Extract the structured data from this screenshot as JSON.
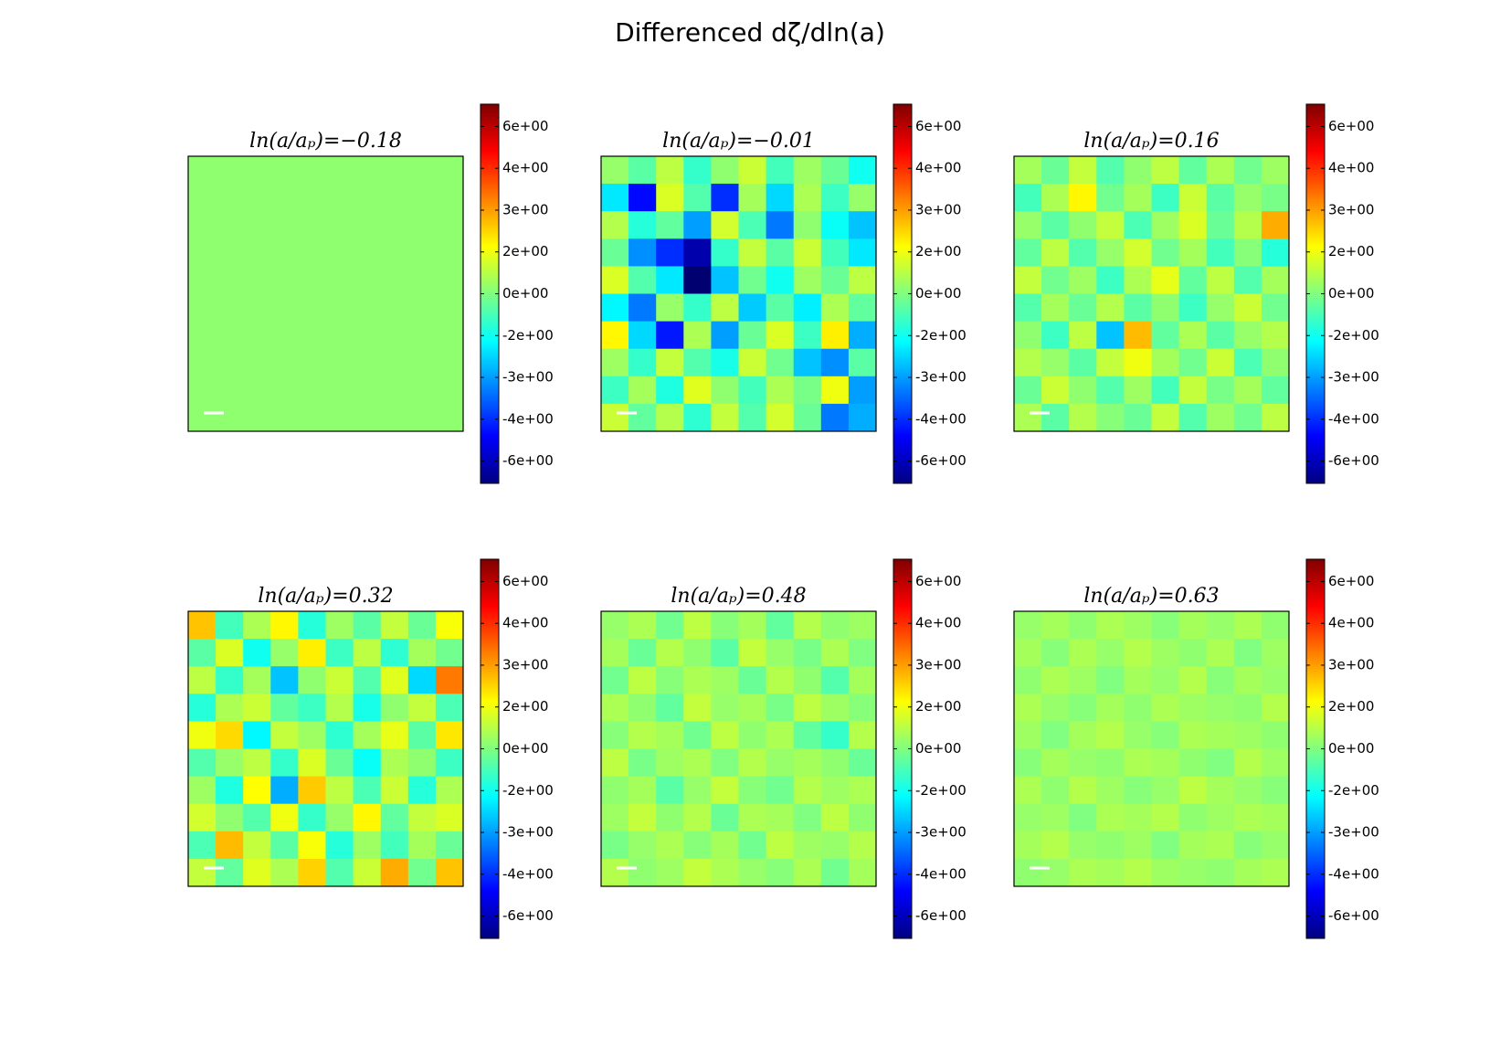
{
  "title": "Differenced dζ/dln(a)",
  "chart_data": [
    {
      "type": "heatmap",
      "title": "ln(a/aₚ)=−0.18",
      "zlim": [
        -6.8,
        6.8
      ],
      "zticks": [
        {
          "value": 6,
          "label": "6e+00"
        },
        {
          "value": 4.5,
          "label": "4e+00"
        },
        {
          "value": 3,
          "label": "3e+00"
        },
        {
          "value": 1.5,
          "label": "2e+00"
        },
        {
          "value": 0,
          "label": "0e+00"
        },
        {
          "value": -1.5,
          "label": "-2e+00"
        },
        {
          "value": -3,
          "label": "-3e+00"
        },
        {
          "value": -4.5,
          "label": "-4e+00"
        },
        {
          "value": -6,
          "label": "-6e+00"
        }
      ],
      "z": [
        [
          0.2,
          0.2,
          0.2,
          0.2,
          0.2,
          0.2,
          0.2,
          0.2,
          0.2,
          0.2
        ],
        [
          0.2,
          0.2,
          0.2,
          0.2,
          0.2,
          0.2,
          0.2,
          0.2,
          0.2,
          0.2
        ],
        [
          0.2,
          0.2,
          0.2,
          0.2,
          0.2,
          0.2,
          0.2,
          0.2,
          0.2,
          0.2
        ],
        [
          0.2,
          0.2,
          0.2,
          0.2,
          0.2,
          0.2,
          0.2,
          0.2,
          0.2,
          0.2
        ],
        [
          0.2,
          0.2,
          0.2,
          0.2,
          0.2,
          0.2,
          0.2,
          0.2,
          0.2,
          0.2
        ],
        [
          0.2,
          0.2,
          0.2,
          0.2,
          0.2,
          0.2,
          0.2,
          0.2,
          0.2,
          0.2
        ],
        [
          0.2,
          0.2,
          0.2,
          0.2,
          0.2,
          0.2,
          0.2,
          0.2,
          0.2,
          0.2
        ],
        [
          0.2,
          0.2,
          0.2,
          0.2,
          0.2,
          0.2,
          0.2,
          0.2,
          0.2,
          0.2
        ],
        [
          0.2,
          0.2,
          0.2,
          0.2,
          0.2,
          0.2,
          0.2,
          0.2,
          0.2,
          0.2
        ],
        [
          0.2,
          0.2,
          0.2,
          0.2,
          0.2,
          0.2,
          0.2,
          0.2,
          0.2,
          0.2
        ]
      ]
    },
    {
      "type": "heatmap",
      "title": "ln(a/aₚ)=−0.01",
      "zlim": [
        -6.8,
        6.8
      ],
      "zticks": [
        {
          "value": 6,
          "label": "6e+00"
        },
        {
          "value": 4.5,
          "label": "4e+00"
        },
        {
          "value": 3,
          "label": "3e+00"
        },
        {
          "value": 1.5,
          "label": "2e+00"
        },
        {
          "value": 0,
          "label": "0e+00"
        },
        {
          "value": -1.5,
          "label": "-2e+00"
        },
        {
          "value": -3,
          "label": "-3e+00"
        },
        {
          "value": -4.5,
          "label": "-4e+00"
        },
        {
          "value": -6,
          "label": "-6e+00"
        }
      ],
      "z": [
        [
          0.3,
          -0.5,
          0.8,
          -1.0,
          0.2,
          1.0,
          -0.8,
          0.4,
          -0.3,
          -1.5
        ],
        [
          -2.0,
          -5.0,
          1.2,
          -0.6,
          -4.5,
          0.5,
          -2.2,
          0.6,
          -0.9,
          0.3
        ],
        [
          0.7,
          -1.2,
          -0.4,
          -3.0,
          1.1,
          -0.7,
          -3.5,
          0.2,
          -1.6,
          -2.5
        ],
        [
          -0.3,
          -3.2,
          -4.5,
          -6.2,
          -1.0,
          0.9,
          -0.5,
          1.0,
          -0.8,
          -2.0
        ],
        [
          1.2,
          -0.6,
          -2.0,
          -7.0,
          -2.5,
          -0.2,
          -1.5,
          0.4,
          -0.3,
          0.8
        ],
        [
          -1.8,
          -3.5,
          0.3,
          -1.0,
          0.8,
          -2.4,
          -0.5,
          -1.9,
          0.6,
          -0.4
        ],
        [
          1.8,
          -2.2,
          -4.8,
          0.6,
          -3.0,
          -0.3,
          1.2,
          -0.9,
          1.9,
          -2.8
        ],
        [
          0.4,
          -1.0,
          0.9,
          -0.6,
          -1.4,
          1.0,
          -0.2,
          -2.5,
          -3.2,
          -0.5
        ],
        [
          -0.9,
          0.5,
          -1.3,
          1.3,
          0.2,
          -0.8,
          0.6,
          -0.1,
          1.5,
          -3.0
        ],
        [
          1.0,
          -0.4,
          0.7,
          -1.1,
          0.9,
          -0.6,
          1.1,
          -0.3,
          -3.5,
          -2.8
        ]
      ]
    },
    {
      "type": "heatmap",
      "title": "ln(a/aₚ)=0.16",
      "zlim": [
        -6.8,
        6.8
      ],
      "zticks": [
        {
          "value": 6,
          "label": "6e+00"
        },
        {
          "value": 4.5,
          "label": "4e+00"
        },
        {
          "value": 3,
          "label": "3e+00"
        },
        {
          "value": 1.5,
          "label": "2e+00"
        },
        {
          "value": 0,
          "label": "0e+00"
        },
        {
          "value": -1.5,
          "label": "-2e+00"
        },
        {
          "value": -3,
          "label": "-3e+00"
        },
        {
          "value": -4.5,
          "label": "-4e+00"
        },
        {
          "value": -6,
          "label": "-6e+00"
        }
      ],
      "z": [
        [
          0.5,
          -0.3,
          0.9,
          -0.6,
          0.2,
          0.8,
          -0.4,
          0.6,
          -0.2,
          0.4
        ],
        [
          -0.8,
          0.6,
          1.8,
          -0.2,
          0.5,
          -0.9,
          1.0,
          -0.5,
          0.3,
          -0.1
        ],
        [
          0.3,
          -0.5,
          0.2,
          0.9,
          -0.7,
          0.4,
          1.2,
          -0.3,
          0.7,
          2.8
        ],
        [
          -0.4,
          0.8,
          -0.6,
          0.3,
          1.1,
          -0.2,
          0.5,
          -0.8,
          0.1,
          -1.2
        ],
        [
          0.9,
          -0.2,
          0.4,
          -0.9,
          0.6,
          1.4,
          -0.4,
          0.8,
          -0.6,
          0.5
        ],
        [
          -0.6,
          0.5,
          -0.3,
          0.7,
          -0.5,
          0.2,
          -0.9,
          0.3,
          1.0,
          -0.2
        ],
        [
          0.2,
          -0.9,
          0.8,
          -2.5,
          2.6,
          -0.4,
          0.6,
          -0.5,
          0.3,
          0.7
        ],
        [
          0.7,
          0.3,
          -0.5,
          0.9,
          1.5,
          0.5,
          -0.2,
          1.0,
          -0.7,
          0.2
        ],
        [
          -0.3,
          1.0,
          0.2,
          -0.6,
          0.4,
          -0.8,
          0.9,
          -0.1,
          0.5,
          -0.4
        ],
        [
          0.6,
          -0.5,
          0.7,
          0.1,
          -0.3,
          0.9,
          -0.6,
          0.4,
          -0.2,
          0.8
        ]
      ]
    },
    {
      "type": "heatmap",
      "title": "ln(a/aₚ)=0.32",
      "zlim": [
        -6.8,
        6.8
      ],
      "zticks": [
        {
          "value": 6,
          "label": "6e+00"
        },
        {
          "value": 4.5,
          "label": "4e+00"
        },
        {
          "value": 3,
          "label": "3e+00"
        },
        {
          "value": 1.5,
          "label": "2e+00"
        },
        {
          "value": 0,
          "label": "0e+00"
        },
        {
          "value": -1.5,
          "label": "-2e+00"
        },
        {
          "value": -3,
          "label": "-3e+00"
        },
        {
          "value": -4.5,
          "label": "-4e+00"
        },
        {
          "value": -6,
          "label": "-6e+00"
        }
      ],
      "z": [
        [
          2.5,
          -0.8,
          0.6,
          1.8,
          -1.2,
          0.4,
          -0.5,
          0.9,
          -0.3,
          1.6
        ],
        [
          -0.5,
          1.2,
          -1.5,
          0.3,
          1.9,
          -0.9,
          0.8,
          -1.1,
          0.5,
          -0.2
        ],
        [
          0.8,
          -1.0,
          0.5,
          -2.5,
          0.2,
          1.0,
          -0.6,
          1.3,
          -2.2,
          3.5
        ],
        [
          -1.2,
          0.6,
          1.0,
          -0.4,
          -0.9,
          0.7,
          -1.4,
          0.2,
          0.9,
          -0.7
        ],
        [
          1.5,
          2.2,
          -1.8,
          0.9,
          0.4,
          -1.1,
          0.5,
          1.4,
          -0.5,
          2.0
        ],
        [
          -0.6,
          0.3,
          0.8,
          -1.0,
          1.2,
          -0.3,
          -1.6,
          0.6,
          0.2,
          -0.9
        ],
        [
          0.4,
          -1.3,
          1.7,
          -2.8,
          2.4,
          0.8,
          -0.7,
          1.0,
          -1.2,
          0.6
        ],
        [
          1.1,
          0.2,
          -0.6,
          1.5,
          -1.0,
          0.3,
          1.8,
          -0.4,
          0.9,
          1.2
        ],
        [
          -0.7,
          2.6,
          0.9,
          -0.5,
          1.6,
          -1.2,
          0.4,
          -0.8,
          0.5,
          -0.3
        ],
        [
          0.9,
          -0.4,
          1.3,
          0.6,
          2.3,
          -0.6,
          1.0,
          2.8,
          -0.2,
          2.5
        ]
      ]
    },
    {
      "type": "heatmap",
      "title": "ln(a/aₚ)=0.48",
      "zlim": [
        -6.8,
        6.8
      ],
      "zticks": [
        {
          "value": 6,
          "label": "6e+00"
        },
        {
          "value": 4.5,
          "label": "4e+00"
        },
        {
          "value": 3,
          "label": "3e+00"
        },
        {
          "value": 1.5,
          "label": "2e+00"
        },
        {
          "value": 0,
          "label": "0e+00"
        },
        {
          "value": -1.5,
          "label": "-2e+00"
        },
        {
          "value": -3,
          "label": "-3e+00"
        },
        {
          "value": -4.5,
          "label": "-4e+00"
        },
        {
          "value": -6,
          "label": "-6e+00"
        }
      ],
      "z": [
        [
          0.3,
          0.6,
          -0.2,
          0.8,
          0.1,
          0.5,
          -0.4,
          0.7,
          0.2,
          0.4
        ],
        [
          0.5,
          -0.3,
          0.7,
          0.2,
          -0.5,
          0.9,
          0.3,
          -0.1,
          0.6,
          0.0
        ],
        [
          -0.2,
          0.8,
          0.1,
          0.6,
          0.4,
          -0.3,
          0.7,
          0.2,
          -0.6,
          0.5
        ],
        [
          0.6,
          0.2,
          -0.4,
          0.9,
          0.3,
          0.5,
          -0.1,
          0.8,
          0.4,
          0.1
        ],
        [
          0.1,
          0.7,
          0.5,
          -0.2,
          0.8,
          0.2,
          0.6,
          -0.4,
          -1.0,
          0.7
        ],
        [
          0.8,
          -0.1,
          0.4,
          0.6,
          0.0,
          0.7,
          0.3,
          0.5,
          0.2,
          -0.3
        ],
        [
          0.2,
          0.5,
          -0.5,
          0.3,
          0.9,
          0.1,
          -0.2,
          0.7,
          0.4,
          0.6
        ],
        [
          0.4,
          0.9,
          0.2,
          0.7,
          -0.3,
          0.6,
          0.5,
          0.0,
          0.8,
          0.2
        ],
        [
          -0.1,
          0.3,
          0.6,
          0.1,
          0.5,
          -0.2,
          0.8,
          0.4,
          0.3,
          0.7
        ],
        [
          0.7,
          0.2,
          0.4,
          0.9,
          0.6,
          0.3,
          0.1,
          0.6,
          -0.2,
          0.5
        ]
      ]
    },
    {
      "type": "heatmap",
      "title": "ln(a/aₚ)=0.63",
      "zlim": [
        -6.8,
        6.8
      ],
      "zticks": [
        {
          "value": 6,
          "label": "6e+00"
        },
        {
          "value": 4.5,
          "label": "4e+00"
        },
        {
          "value": 3,
          "label": "3e+00"
        },
        {
          "value": 1.5,
          "label": "2e+00"
        },
        {
          "value": 0,
          "label": "0e+00"
        },
        {
          "value": -1.5,
          "label": "-2e+00"
        },
        {
          "value": -3,
          "label": "-3e+00"
        },
        {
          "value": -4.5,
          "label": "-4e+00"
        },
        {
          "value": -6,
          "label": "-6e+00"
        }
      ],
      "z": [
        [
          0.3,
          0.5,
          0.2,
          0.6,
          0.4,
          0.1,
          0.5,
          0.3,
          0.6,
          0.2
        ],
        [
          0.5,
          0.1,
          0.6,
          0.3,
          0.7,
          0.4,
          0.2,
          0.6,
          0.0,
          0.4
        ],
        [
          0.2,
          0.6,
          0.4,
          0.0,
          0.5,
          0.3,
          0.7,
          0.1,
          0.5,
          0.3
        ],
        [
          0.6,
          0.3,
          0.1,
          0.5,
          0.2,
          0.6,
          0.4,
          0.3,
          0.2,
          0.7
        ],
        [
          0.4,
          0.0,
          0.5,
          0.7,
          0.3,
          0.1,
          0.6,
          0.5,
          0.4,
          0.2
        ],
        [
          0.1,
          0.5,
          0.3,
          0.2,
          0.6,
          0.5,
          0.2,
          0.0,
          0.7,
          0.4
        ],
        [
          0.6,
          0.2,
          0.7,
          0.4,
          0.1,
          0.3,
          0.8,
          0.5,
          0.3,
          0.1
        ],
        [
          0.3,
          0.4,
          0.0,
          0.6,
          0.5,
          0.7,
          0.2,
          0.4,
          0.6,
          0.5
        ],
        [
          0.5,
          0.7,
          0.3,
          0.2,
          0.4,
          0.0,
          0.5,
          0.6,
          0.1,
          0.3
        ],
        [
          0.2,
          0.3,
          0.6,
          0.5,
          0.7,
          0.4,
          0.3,
          0.2,
          0.5,
          0.6
        ]
      ]
    }
  ]
}
